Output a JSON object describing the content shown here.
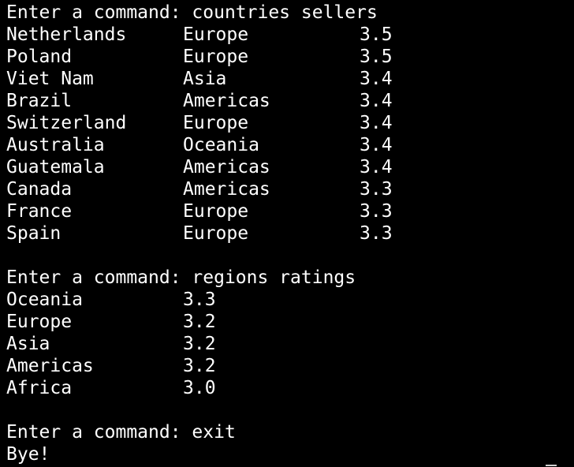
{
  "session1": {
    "prompt": "Enter a command: countries sellers",
    "rows": [
      {
        "country": "Netherlands",
        "region": "Europe",
        "rating": "3.5"
      },
      {
        "country": "Poland",
        "region": "Europe",
        "rating": "3.5"
      },
      {
        "country": "Viet Nam",
        "region": "Asia",
        "rating": "3.4"
      },
      {
        "country": "Brazil",
        "region": "Americas",
        "rating": "3.4"
      },
      {
        "country": "Switzerland",
        "region": "Europe",
        "rating": "3.4"
      },
      {
        "country": "Australia",
        "region": "Oceania",
        "rating": "3.4"
      },
      {
        "country": "Guatemala",
        "region": "Americas",
        "rating": "3.4"
      },
      {
        "country": "Canada",
        "region": "Americas",
        "rating": "3.3"
      },
      {
        "country": "France",
        "region": "Europe",
        "rating": "3.3"
      },
      {
        "country": "Spain",
        "region": "Europe",
        "rating": "3.3"
      }
    ]
  },
  "session2": {
    "prompt": "Enter a command: regions ratings",
    "rows": [
      {
        "region": "Oceania",
        "rating": "3.3"
      },
      {
        "region": "Europe",
        "rating": "3.2"
      },
      {
        "region": "Asia",
        "rating": "3.2"
      },
      {
        "region": "Americas",
        "rating": "3.2"
      },
      {
        "region": "Africa",
        "rating": "3.0"
      }
    ]
  },
  "session3": {
    "prompt": "Enter a command: exit",
    "output": "Bye!"
  }
}
